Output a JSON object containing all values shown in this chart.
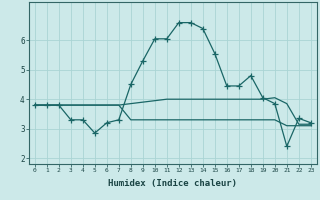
{
  "xlabel": "Humidex (Indice chaleur)",
  "background_color": "#cce9e9",
  "grid_color": "#aad4d4",
  "line_color": "#1a6666",
  "xlim": [
    -0.5,
    23.5
  ],
  "ylim": [
    1.8,
    7.3
  ],
  "yticks": [
    2,
    3,
    4,
    5,
    6
  ],
  "xticks": [
    0,
    1,
    2,
    3,
    4,
    5,
    6,
    7,
    8,
    9,
    10,
    11,
    12,
    13,
    14,
    15,
    16,
    17,
    18,
    19,
    20,
    21,
    22,
    23
  ],
  "series1_x": [
    0,
    1,
    2,
    3,
    4,
    5,
    6,
    7,
    8,
    9,
    10,
    11,
    12,
    13,
    14,
    15,
    16,
    17,
    18,
    19,
    20,
    21,
    22,
    23
  ],
  "series1_y": [
    3.8,
    3.8,
    3.8,
    3.8,
    3.8,
    3.8,
    3.8,
    3.8,
    3.85,
    3.9,
    3.95,
    4.0,
    4.0,
    4.0,
    4.0,
    4.0,
    4.0,
    4.0,
    4.0,
    4.0,
    4.05,
    3.85,
    3.15,
    3.15
  ],
  "series2_x": [
    0,
    1,
    2,
    3,
    4,
    5,
    6,
    7,
    8,
    9,
    10,
    11,
    12,
    13,
    14,
    15,
    16,
    17,
    18,
    19,
    20,
    21,
    22,
    23
  ],
  "series2_y": [
    3.8,
    3.8,
    3.8,
    3.3,
    3.3,
    2.85,
    3.2,
    3.3,
    4.5,
    5.3,
    6.05,
    6.05,
    6.6,
    6.6,
    6.4,
    5.55,
    4.45,
    4.45,
    4.8,
    4.05,
    3.85,
    2.4,
    3.35,
    3.2
  ],
  "series3_x": [
    0,
    1,
    2,
    3,
    4,
    5,
    6,
    7,
    8,
    9,
    10,
    11,
    12,
    13,
    14,
    15,
    16,
    17,
    18,
    19,
    20,
    21,
    22,
    23
  ],
  "series3_y": [
    3.8,
    3.8,
    3.8,
    3.8,
    3.8,
    3.8,
    3.8,
    3.8,
    3.3,
    3.3,
    3.3,
    3.3,
    3.3,
    3.3,
    3.3,
    3.3,
    3.3,
    3.3,
    3.3,
    3.3,
    3.3,
    3.1,
    3.1,
    3.1
  ]
}
